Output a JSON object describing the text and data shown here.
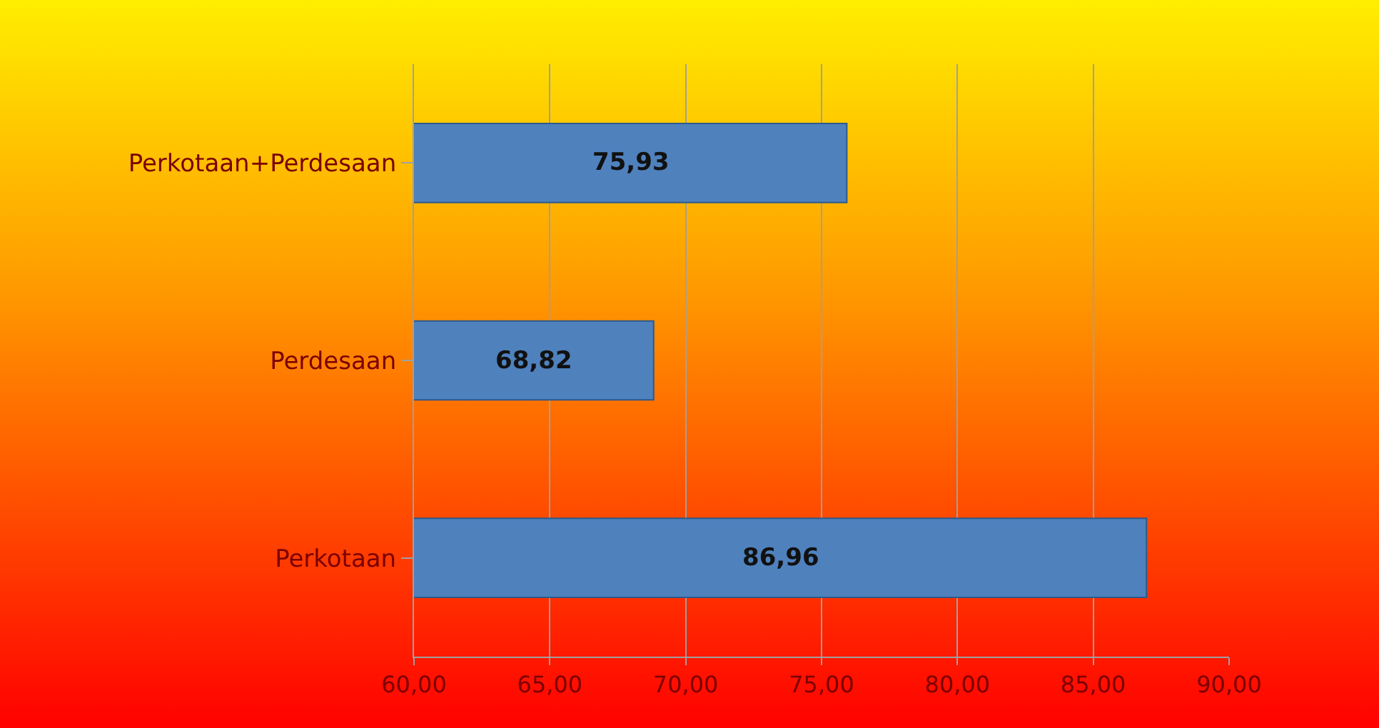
{
  "chart_data": {
    "type": "bar",
    "orientation": "horizontal",
    "categories": [
      "Perkotaan+Perdesaan",
      "Perdesaan",
      "Perkotaan"
    ],
    "values": [
      75.93,
      68.82,
      86.96
    ],
    "value_labels": [
      "75,93",
      "68,82",
      "86,96"
    ],
    "color": "#4f81bd",
    "xlim": [
      60,
      90
    ],
    "xticks": [
      {
        "value": 60,
        "label": "60,00"
      },
      {
        "value": 65,
        "label": "65,00"
      },
      {
        "value": 70,
        "label": "70,00"
      },
      {
        "value": 75,
        "label": "75,00"
      },
      {
        "value": 80,
        "label": "80,00"
      },
      {
        "value": 85,
        "label": "85,00"
      },
      {
        "value": 90,
        "label": "90,00"
      }
    ],
    "grid": "x"
  }
}
